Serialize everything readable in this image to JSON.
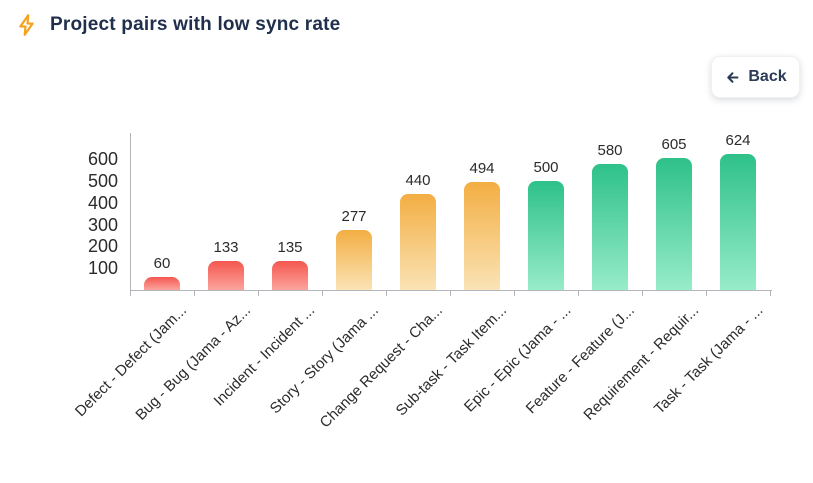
{
  "header": {
    "title": "Project pairs with low sync rate"
  },
  "icons": {
    "title_icon": "lightning-bolt",
    "back_icon": "arrow-left"
  },
  "toolbar": {
    "back_label": "Back"
  },
  "colors": {
    "title_text": "#20304c",
    "icon_accent": "#f6a21c",
    "axis": "#b4b5ba",
    "label_text": "#2b2b2b",
    "red_top": "#f4574f",
    "red_bottom": "#fba49d",
    "orange_top": "#f3ae43",
    "orange_bottom": "#fae3b5",
    "green_top": "#2ec189",
    "green_bottom": "#97ecc8"
  },
  "chart_data": {
    "type": "bar",
    "title": "Project pairs with low sync rate",
    "categories": [
      "Defect - Defect (Jam...",
      "Bug - Bug (Jama - Az...",
      "Incident - Incident ...",
      "Story - Story (Jama ...",
      "Change Request - Cha...",
      "Sub-task - Task Item...",
      "Epic - Epic (Jama - ...",
      "Feature - Feature (J...",
      "Requirement - Requir...",
      "Task - Task (Jama - ..."
    ],
    "values": [
      60,
      133,
      135,
      277,
      440,
      494,
      500,
      580,
      605,
      624
    ],
    "value_labels_shown": true,
    "palette": [
      {
        "top": "#f4574f",
        "bottom": "#fba49d"
      },
      {
        "top": "#f3ae43",
        "bottom": "#fae3b5"
      },
      {
        "top": "#2ec189",
        "bottom": "#97ecc8"
      }
    ],
    "color_index": [
      0,
      0,
      0,
      1,
      1,
      1,
      2,
      2,
      2,
      2
    ],
    "yticks": [
      100,
      200,
      300,
      400,
      500,
      600
    ],
    "ylim": [
      0,
      720
    ],
    "xlabel": "",
    "ylabel": "",
    "grid": false,
    "legend_position": "none",
    "label_rotation": -45
  }
}
